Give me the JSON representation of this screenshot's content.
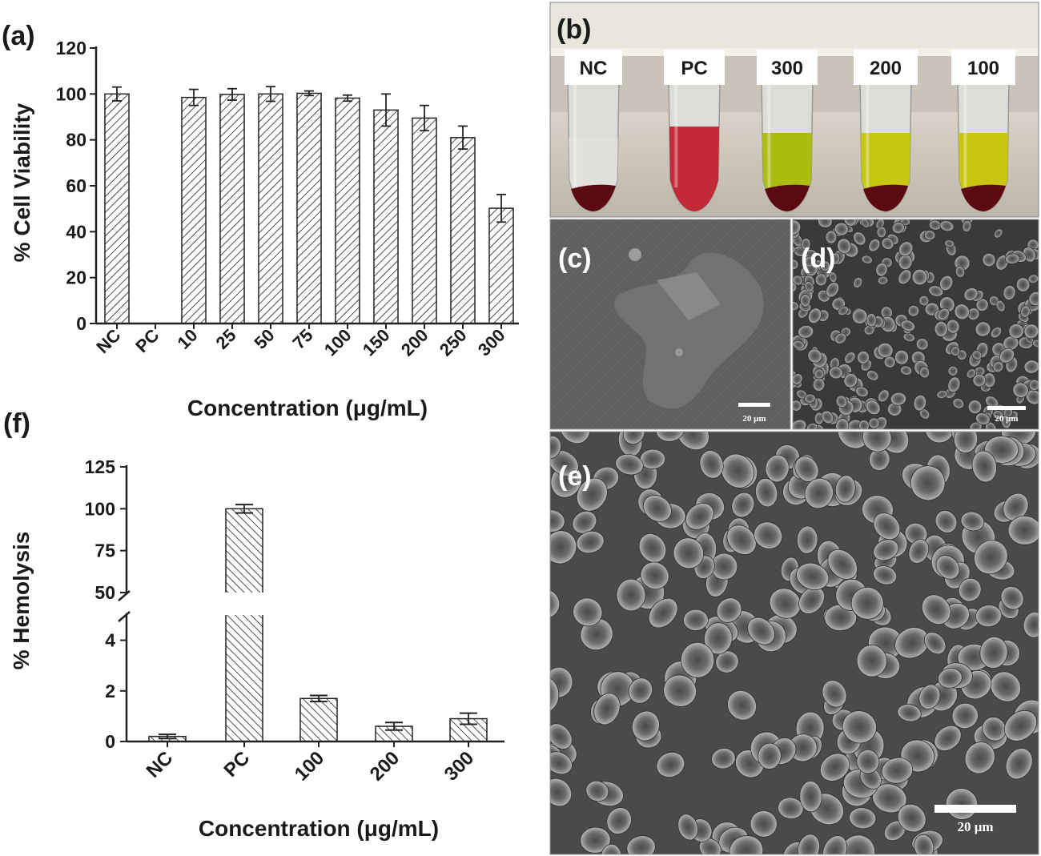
{
  "panels": {
    "a": "(a)",
    "b": "(b)",
    "c": "(c)",
    "d": "(d)",
    "e": "(e)",
    "f": "(f)"
  },
  "tube_labels": [
    "NC",
    "PC",
    "300",
    "200",
    "100"
  ],
  "tube_colors": {
    "NC": "#e8e4e0",
    "PC": "#c01a2a",
    "300": "#a8b800",
    "200": "#c2c400",
    "100": "#c8c200",
    "pellet": "#5a0a10"
  },
  "scale_bars": {
    "c": "20 μm",
    "d": "20 μm",
    "e": "20 μm"
  },
  "chart_data": [
    {
      "type": "bar",
      "panel": "a",
      "categories": [
        "NC",
        "PC",
        "10",
        "25",
        "50",
        "75",
        "100",
        "150",
        "200",
        "250",
        "300"
      ],
      "values": [
        100,
        0,
        98.5,
        99.8,
        100,
        100.3,
        98.2,
        93,
        89.5,
        81,
        50.2
      ],
      "errors": [
        3,
        0,
        3.5,
        2.5,
        3.2,
        1,
        1.3,
        7,
        5.5,
        5,
        6
      ],
      "xlabel": "Concentration (μg/mL)",
      "ylabel": "% Cell Viability",
      "ylim": [
        0,
        120
      ],
      "yticks": [
        0,
        20,
        40,
        60,
        80,
        100,
        120
      ],
      "pattern": "diagonal-hatch"
    },
    {
      "type": "bar",
      "panel": "f",
      "categories": [
        "NC",
        "PC",
        "100",
        "200",
        "300"
      ],
      "values": [
        0.2,
        100,
        1.7,
        0.6,
        0.9
      ],
      "errors": [
        0.08,
        2.5,
        0.12,
        0.15,
        0.22
      ],
      "xlabel": "Concentration (μg/mL)",
      "ylabel": "% Hemolysis",
      "y_axis_break": {
        "lower": [
          0,
          5
        ],
        "upper": [
          50,
          125
        ]
      },
      "yticks_lower": [
        0,
        2,
        4
      ],
      "yticks_upper": [
        50,
        75,
        100,
        125
      ],
      "pattern": "diagonal-hatch"
    }
  ]
}
